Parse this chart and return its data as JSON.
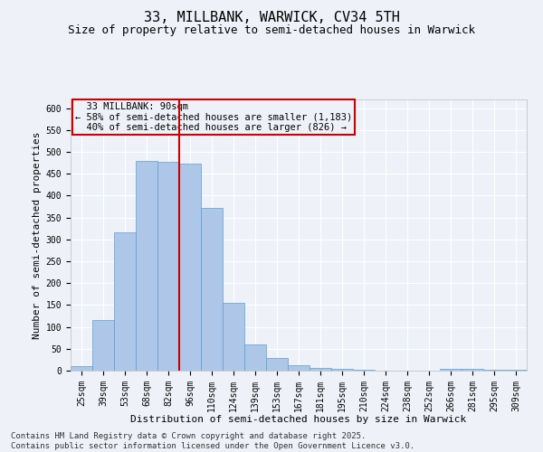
{
  "title1": "33, MILLBANK, WARWICK, CV34 5TH",
  "title2": "Size of property relative to semi-detached houses in Warwick",
  "xlabel": "Distribution of semi-detached houses by size in Warwick",
  "ylabel": "Number of semi-detached properties",
  "categories": [
    "25sqm",
    "39sqm",
    "53sqm",
    "68sqm",
    "82sqm",
    "96sqm",
    "110sqm",
    "124sqm",
    "139sqm",
    "153sqm",
    "167sqm",
    "181sqm",
    "195sqm",
    "210sqm",
    "224sqm",
    "238sqm",
    "252sqm",
    "266sqm",
    "281sqm",
    "295sqm",
    "309sqm"
  ],
  "values": [
    10,
    115,
    317,
    480,
    478,
    473,
    373,
    155,
    60,
    28,
    13,
    7,
    4,
    3,
    0,
    0,
    0,
    5,
    4,
    2,
    2
  ],
  "bar_color": "#aec6e8",
  "bar_edge_color": "#5a9fd4",
  "property_label": "33 MILLBANK: 90sqm",
  "smaller_pct": 58,
  "smaller_count": "1,183",
  "larger_pct": 40,
  "larger_count": 826,
  "vline_color": "#cc0000",
  "ylim": [
    0,
    620
  ],
  "yticks": [
    0,
    50,
    100,
    150,
    200,
    250,
    300,
    350,
    400,
    450,
    500,
    550,
    600
  ],
  "footer1": "Contains HM Land Registry data © Crown copyright and database right 2025.",
  "footer2": "Contains public sector information licensed under the Open Government Licence v3.0.",
  "background_color": "#eef2f8",
  "grid_color": "#ffffff",
  "box_color": "#cc0000",
  "title_fontsize": 11,
  "subtitle_fontsize": 9,
  "axis_label_fontsize": 8,
  "tick_fontsize": 7,
  "footer_fontsize": 6.5,
  "annotation_fontsize": 7.5
}
